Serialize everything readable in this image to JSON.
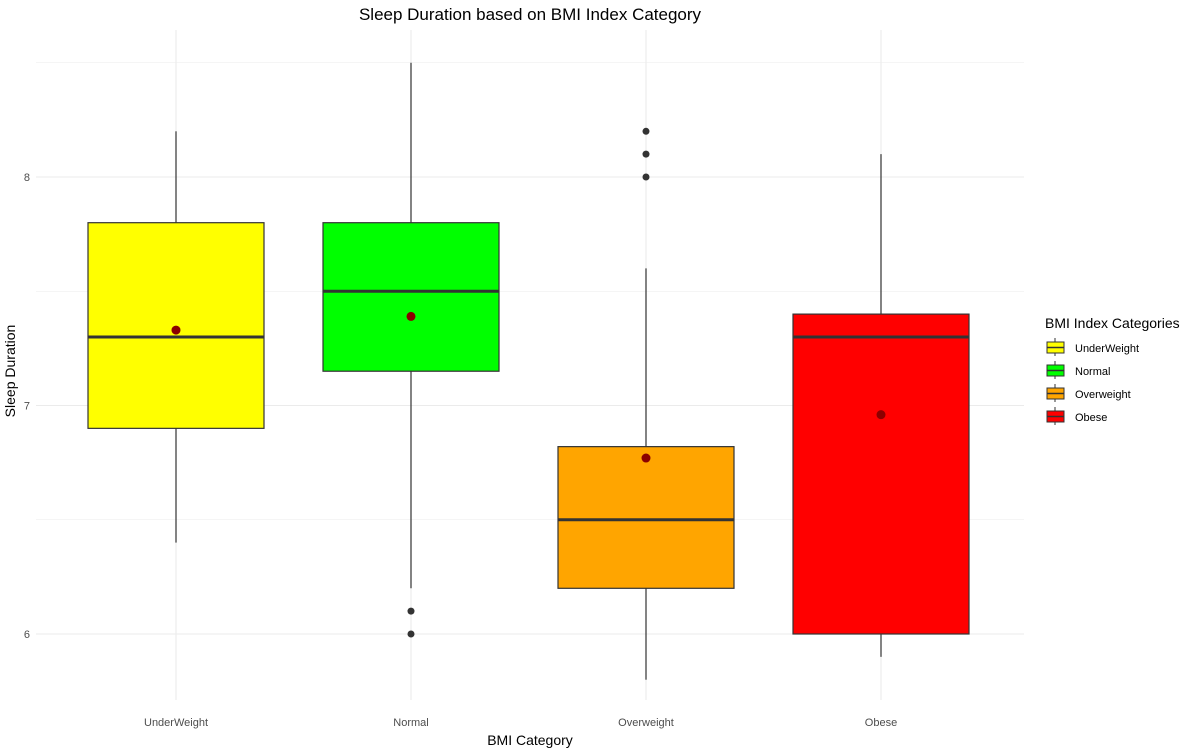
{
  "chart_data": {
    "type": "boxplot",
    "title": "Sleep Duration based on BMI Index Category",
    "xlabel": "BMI Category",
    "ylabel": "Sleep Duration",
    "categories": [
      "UnderWeight",
      "Normal",
      "Overweight",
      "Obese"
    ],
    "y_ticks": [
      "6",
      "7",
      "8"
    ],
    "ylim": [
      5.7,
      8.6
    ],
    "grid": true,
    "legend": {
      "title": "BMI Index Categories",
      "placement": "right",
      "entries": [
        "UnderWeight",
        "Normal",
        "Overweight",
        "Obese"
      ]
    },
    "boxes": [
      {
        "category": "UnderWeight",
        "color": "#ffff00",
        "whisker_low": 6.4,
        "q1": 6.9,
        "median": 7.3,
        "q3": 7.8,
        "whisker_high": 8.2,
        "mean": 7.33,
        "outliers": []
      },
      {
        "category": "Normal",
        "color": "#00ff00",
        "whisker_low": 6.2,
        "q1": 7.15,
        "median": 7.5,
        "q3": 7.8,
        "whisker_high": 8.5,
        "mean": 7.39,
        "outliers": [
          6.1,
          6.0
        ]
      },
      {
        "category": "Overweight",
        "color": "#ffa500",
        "whisker_low": 5.8,
        "q1": 6.2,
        "median": 6.5,
        "q3": 6.82,
        "whisker_high": 7.6,
        "mean": 6.77,
        "outliers": [
          8.0,
          8.1,
          8.2
        ]
      },
      {
        "category": "Obese",
        "color": "#ff0000",
        "whisker_low": 5.9,
        "q1": 6.0,
        "median": 7.3,
        "q3": 7.4,
        "whisker_high": 8.1,
        "mean": 6.96,
        "outliers": []
      }
    ],
    "colors": {
      "mean_point": "#8b0000",
      "outlier_point": "#333333",
      "box_outline": "#333333",
      "grid": "#ebebeb"
    }
  }
}
